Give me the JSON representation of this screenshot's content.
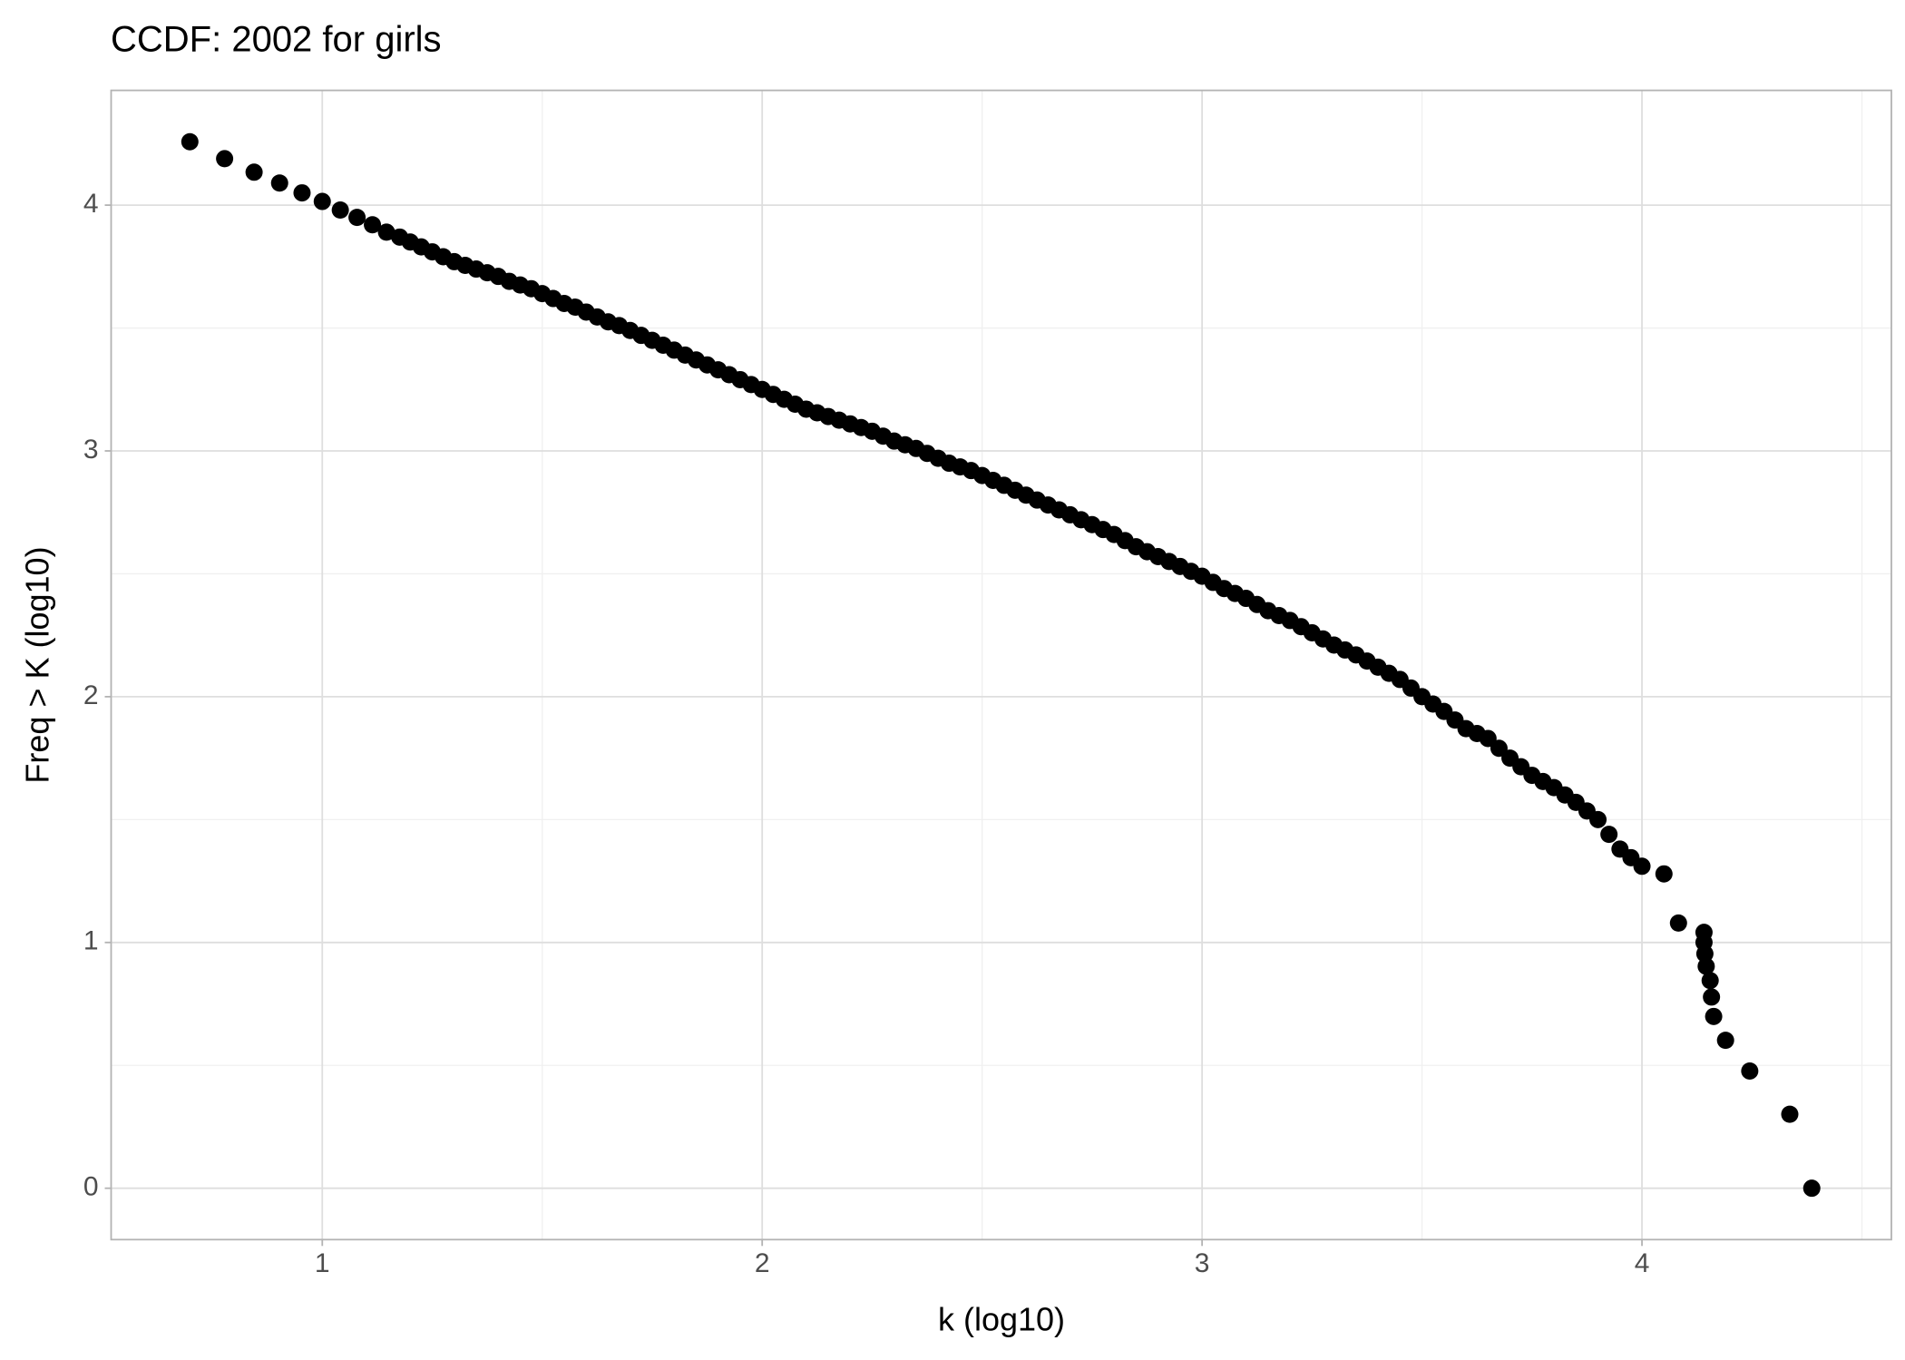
{
  "chart_data": {
    "type": "scatter",
    "title": "CCDF: 2002 for girls",
    "x_label": "k (log10)",
    "y_label": "Freq > K (log10)",
    "color": "#000000",
    "grid": true,
    "xlim": [
      0.52,
      4.567
    ],
    "ylim": [
      -0.209,
      4.467
    ],
    "xticks": [
      1,
      2,
      3,
      4
    ],
    "yticks": [
      0,
      1,
      2,
      3,
      4
    ],
    "x": [
      0.699,
      0.778,
      0.845,
      0.903,
      0.954,
      1.0,
      1.041,
      1.079,
      1.114,
      1.146,
      1.176,
      1.2,
      1.225,
      1.25,
      1.275,
      1.3,
      1.325,
      1.35,
      1.375,
      1.4,
      1.425,
      1.45,
      1.475,
      1.5,
      1.525,
      1.55,
      1.575,
      1.6,
      1.625,
      1.65,
      1.675,
      1.7,
      1.725,
      1.75,
      1.775,
      1.8,
      1.825,
      1.85,
      1.875,
      1.9,
      1.925,
      1.95,
      1.975,
      2.0,
      2.025,
      2.05,
      2.075,
      2.1,
      2.125,
      2.15,
      2.175,
      2.2,
      2.225,
      2.25,
      2.275,
      2.3,
      2.325,
      2.35,
      2.375,
      2.4,
      2.425,
      2.45,
      2.475,
      2.5,
      2.525,
      2.55,
      2.575,
      2.6,
      2.625,
      2.65,
      2.675,
      2.7,
      2.725,
      2.75,
      2.775,
      2.8,
      2.825,
      2.85,
      2.875,
      2.9,
      2.925,
      2.95,
      2.975,
      3.0,
      3.025,
      3.05,
      3.075,
      3.1,
      3.125,
      3.15,
      3.175,
      3.2,
      3.225,
      3.25,
      3.275,
      3.3,
      3.325,
      3.35,
      3.375,
      3.4,
      3.425,
      3.45,
      3.475,
      3.5,
      3.525,
      3.55,
      3.575,
      3.6,
      3.625,
      3.65,
      3.675,
      3.7,
      3.725,
      3.75,
      3.775,
      3.8,
      3.825,
      3.85,
      3.875,
      3.9,
      3.925,
      3.95,
      3.975,
      4.0,
      4.05,
      4.083,
      4.141,
      4.141,
      4.143,
      4.146,
      4.155,
      4.158,
      4.163,
      4.19,
      4.245,
      4.336,
      4.386
    ],
    "values": [
      4.258,
      4.189,
      4.134,
      4.09,
      4.05,
      4.015,
      3.98,
      3.95,
      3.92,
      3.89,
      3.87,
      3.85,
      3.83,
      3.81,
      3.79,
      3.77,
      3.755,
      3.74,
      3.725,
      3.71,
      3.69,
      3.675,
      3.66,
      3.64,
      3.62,
      3.6,
      3.585,
      3.565,
      3.545,
      3.525,
      3.51,
      3.49,
      3.47,
      3.45,
      3.43,
      3.41,
      3.39,
      3.37,
      3.35,
      3.33,
      3.31,
      3.29,
      3.27,
      3.25,
      3.23,
      3.21,
      3.19,
      3.17,
      3.155,
      3.14,
      3.125,
      3.11,
      3.095,
      3.08,
      3.06,
      3.04,
      3.025,
      3.01,
      2.99,
      2.97,
      2.95,
      2.935,
      2.92,
      2.9,
      2.88,
      2.86,
      2.84,
      2.82,
      2.8,
      2.78,
      2.76,
      2.74,
      2.72,
      2.7,
      2.68,
      2.66,
      2.635,
      2.61,
      2.59,
      2.57,
      2.55,
      2.53,
      2.51,
      2.49,
      2.465,
      2.44,
      2.42,
      2.4,
      2.375,
      2.35,
      2.33,
      2.31,
      2.285,
      2.26,
      2.235,
      2.21,
      2.19,
      2.17,
      2.145,
      2.12,
      2.095,
      2.07,
      2.035,
      2.0,
      1.97,
      1.94,
      1.905,
      1.87,
      1.85,
      1.83,
      1.79,
      1.75,
      1.715,
      1.68,
      1.655,
      1.63,
      1.6,
      1.57,
      1.535,
      1.5,
      1.44,
      1.38,
      1.345,
      1.31,
      1.279,
      1.079,
      1.041,
      1.0,
      0.954,
      0.903,
      0.845,
      0.778,
      0.699,
      0.602,
      0.477,
      0.301,
      0
    ]
  }
}
